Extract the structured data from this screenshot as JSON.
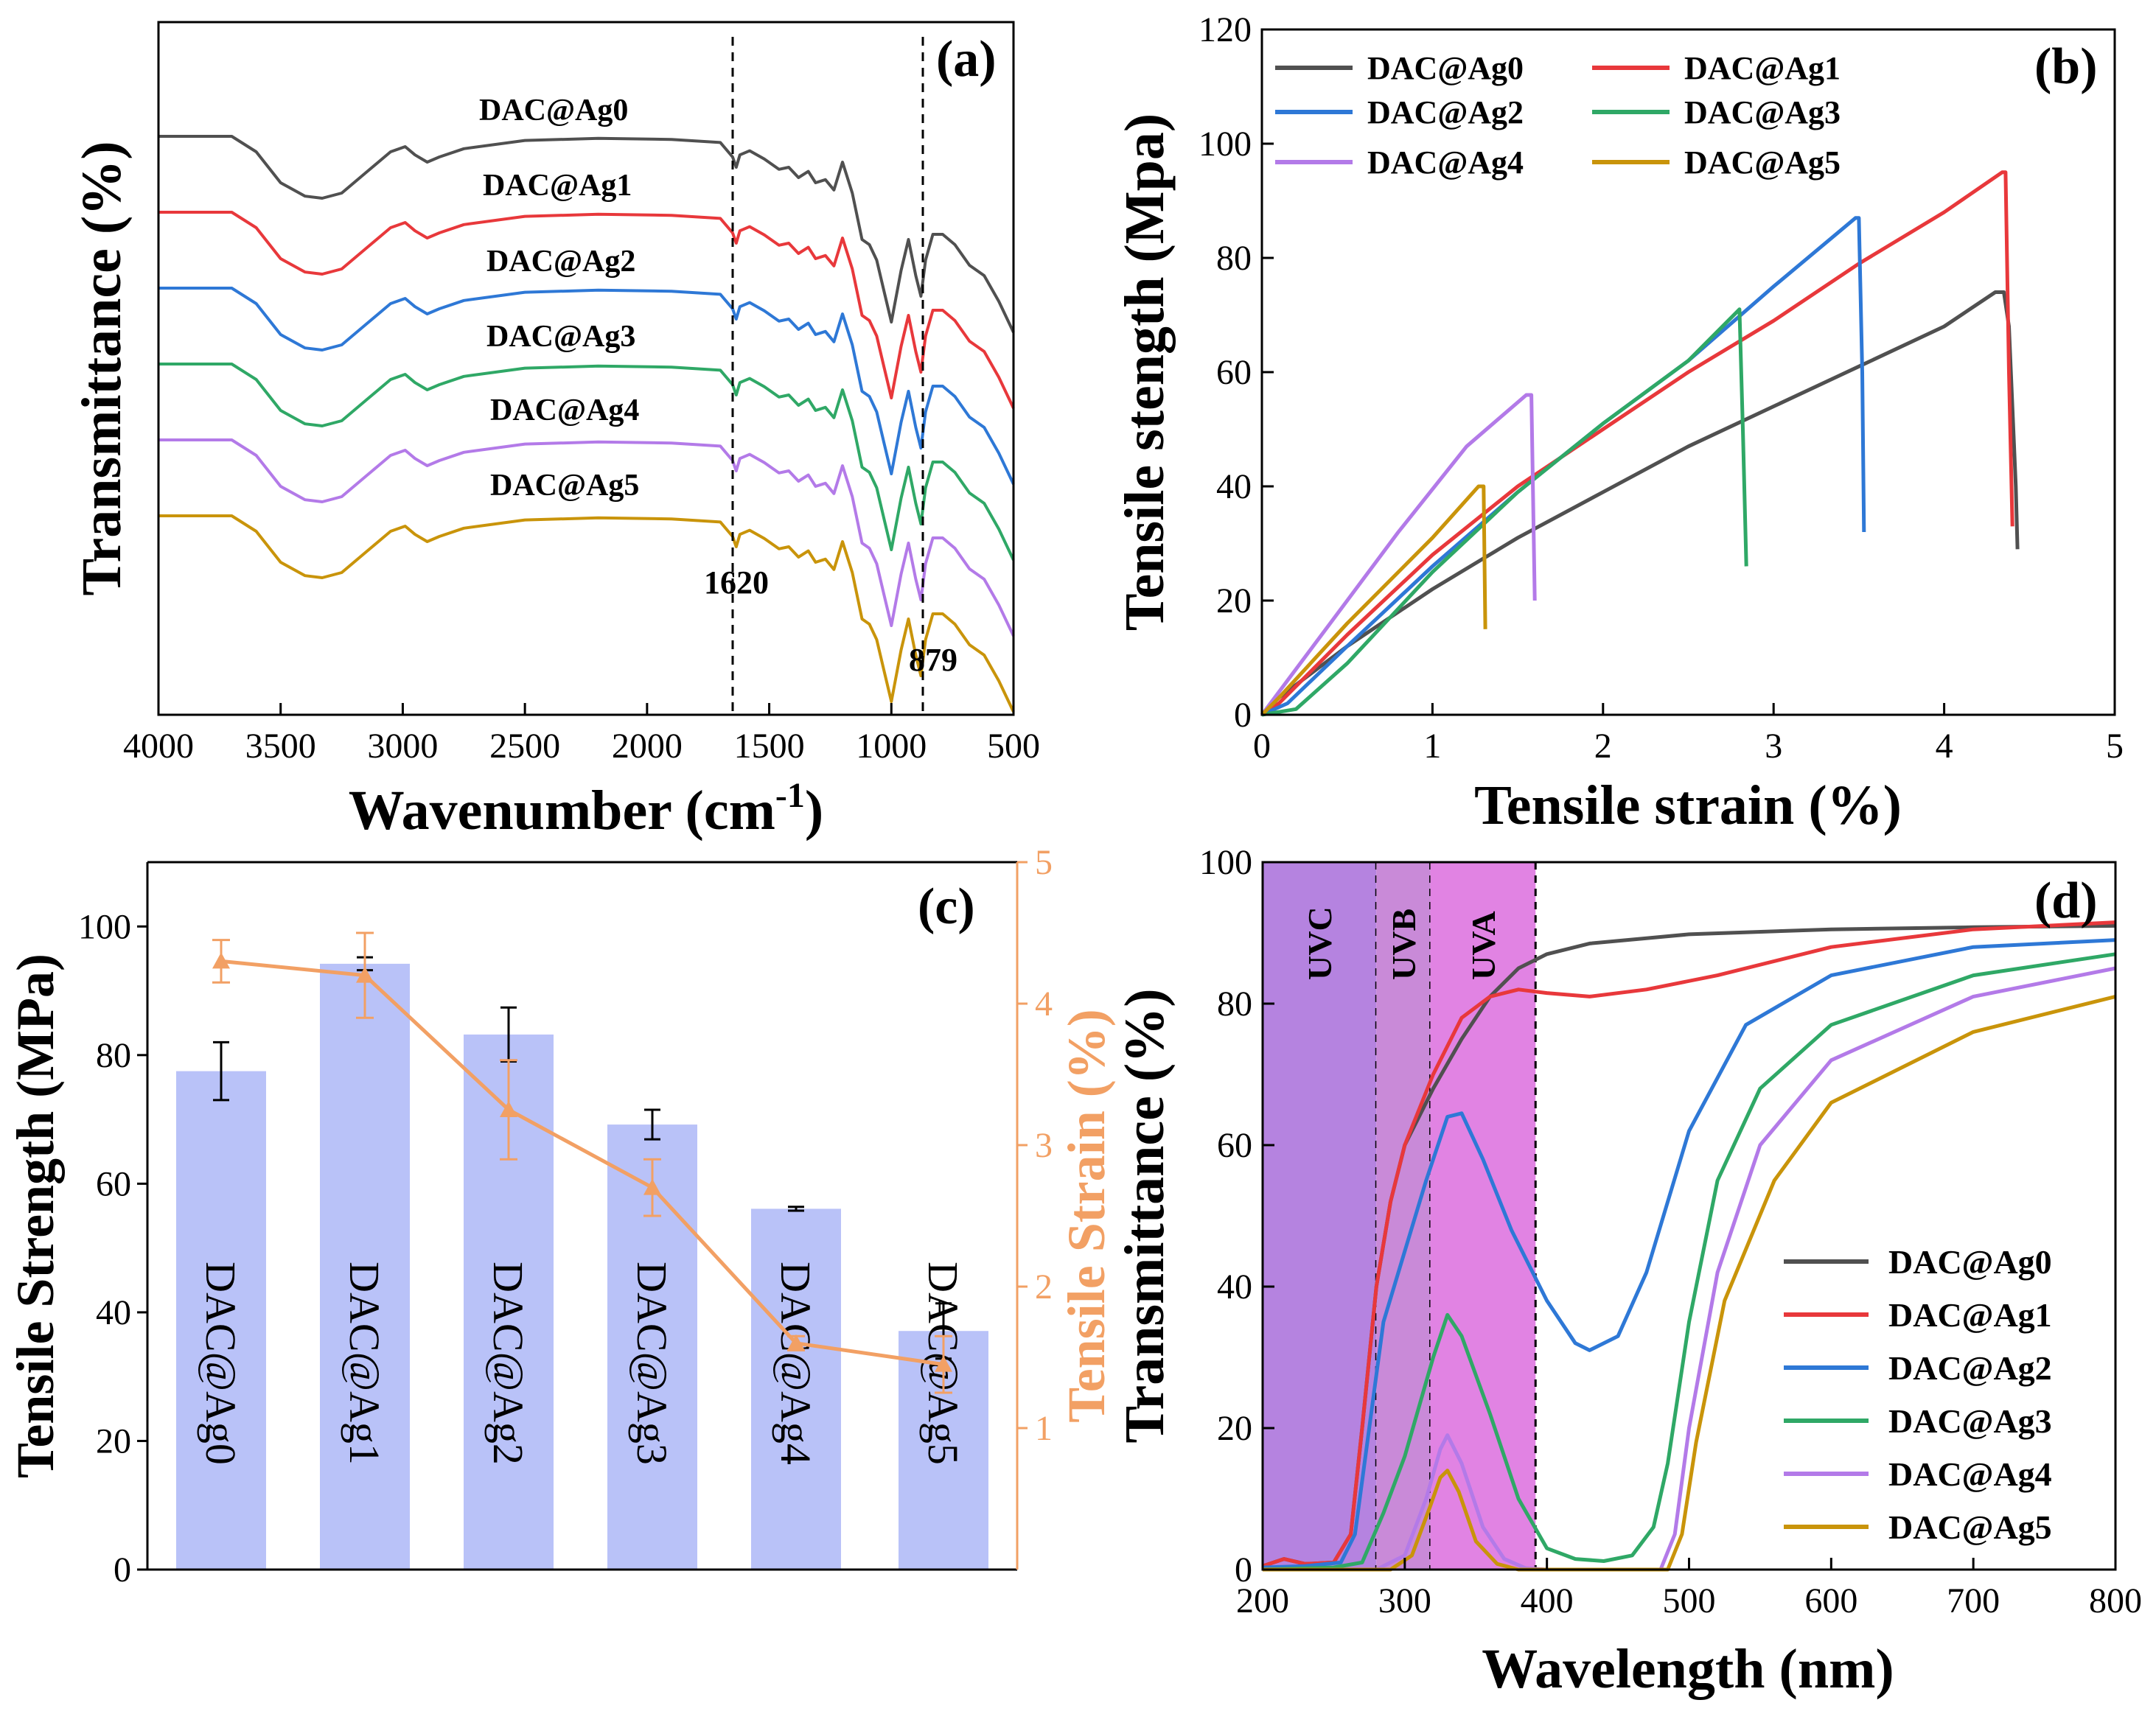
{
  "colors": {
    "Ag0": "#505050",
    "Ag1": "#e8383b",
    "Ag2": "#2e78d6",
    "Ag3": "#2fa866",
    "Ag4": "#b37ae8",
    "Ag5": "#c9940a",
    "bar": "#b9c2f8",
    "strain": "#f2a064",
    "uvc": "#b583e0",
    "uvb": "#c98ad8",
    "uva": "#e183e3"
  },
  "chart_data": [
    {
      "panel": "(a)",
      "type": "line",
      "xlabel": "Wavenumber (cm",
      "xlabel_sup": "-1",
      "xlabel_close": ")",
      "ylabel": "Transmittance (%)",
      "xlim": [
        4000,
        500
      ],
      "xticks": [
        "4000",
        "3500",
        "3000",
        "2500",
        "2000",
        "1500",
        "1000",
        "500"
      ],
      "xtick_values": [
        4000,
        3500,
        3000,
        2500,
        2000,
        1500,
        1000,
        500
      ],
      "series_labels": [
        "DAC@Ag0",
        "DAC@Ag1",
        "DAC@Ag2",
        "DAC@Ag3",
        "DAC@Ag4",
        "DAC@Ag5"
      ],
      "offsets": [
        0,
        1,
        2,
        3,
        4,
        5
      ],
      "template_x": [
        4000,
        3700,
        3600,
        3500,
        3400,
        3330,
        3250,
        3150,
        3050,
        2990,
        2950,
        2900,
        2850,
        2750,
        2500,
        2200,
        1900,
        1700,
        1650,
        1635,
        1620,
        1580,
        1520,
        1460,
        1420,
        1380,
        1340,
        1310,
        1270,
        1235,
        1200,
        1160,
        1120,
        1090,
        1060,
        1030,
        1000,
        960,
        930,
        900,
        879,
        860,
        830,
        790,
        740,
        680,
        620,
        560,
        500
      ],
      "template_t": [
        0,
        0,
        -0.15,
        -0.45,
        -0.58,
        -0.6,
        -0.55,
        -0.35,
        -0.15,
        -0.1,
        -0.18,
        -0.25,
        -0.2,
        -0.12,
        -0.04,
        -0.02,
        -0.03,
        -0.06,
        -0.2,
        -0.3,
        -0.18,
        -0.14,
        -0.22,
        -0.32,
        -0.3,
        -0.4,
        -0.34,
        -0.45,
        -0.42,
        -0.52,
        -0.25,
        -0.55,
        -1.0,
        -1.05,
        -1.2,
        -1.5,
        -1.8,
        -1.3,
        -1.0,
        -1.35,
        -1.55,
        -1.2,
        -0.95,
        -0.95,
        -1.05,
        -1.25,
        -1.35,
        -1.6,
        -1.9
      ],
      "annotations": [
        "1620",
        "879"
      ],
      "annotation_x": [
        1620,
        879
      ]
    },
    {
      "panel": "(b)",
      "type": "line",
      "xlabel": "Tensile strain (%)",
      "ylabel": "Tensile stength (Mpa)",
      "xlim": [
        0,
        5
      ],
      "ylim": [
        0,
        120
      ],
      "xticks": [
        "0",
        "1",
        "2",
        "3",
        "4",
        "5"
      ],
      "xtick_values": [
        0,
        1,
        2,
        3,
        4,
        5
      ],
      "yticks": [
        "0",
        "20",
        "40",
        "60",
        "80",
        "100",
        "120"
      ],
      "ytick_values": [
        0,
        20,
        40,
        60,
        80,
        100,
        120
      ],
      "legend": [
        "DAC@Ag0",
        "DAC@Ag1",
        "DAC@Ag2",
        "DAC@Ag3",
        "DAC@Ag4",
        "DAC@Ag5"
      ],
      "series": [
        {
          "name": "DAC@Ag0",
          "x": [
            0,
            0.1,
            0.5,
            1.0,
            1.5,
            2.0,
            2.5,
            3.0,
            3.5,
            4.0,
            4.3,
            4.35,
            4.38,
            4.42,
            4.43
          ],
          "y": [
            0,
            3,
            12,
            22,
            31,
            39,
            47,
            54,
            61,
            68,
            74,
            74,
            68,
            40,
            29
          ]
        },
        {
          "name": "DAC@Ag1",
          "x": [
            0,
            0.1,
            0.5,
            1.0,
            1.5,
            2.0,
            2.5,
            3.0,
            3.5,
            4.0,
            4.34,
            4.36,
            4.38,
            4.4
          ],
          "y": [
            0,
            2,
            14,
            28,
            40,
            50,
            60,
            69,
            79,
            88,
            95,
            95,
            60,
            33
          ]
        },
        {
          "name": "DAC@Ag2",
          "x": [
            0,
            0.15,
            0.5,
            1.0,
            1.5,
            2.0,
            2.5,
            3.0,
            3.48,
            3.5,
            3.52,
            3.53
          ],
          "y": [
            0,
            2,
            12,
            26,
            39,
            51,
            62,
            75,
            87,
            87,
            60,
            32
          ]
        },
        {
          "name": "DAC@Ag3",
          "x": [
            0,
            0.2,
            0.5,
            1.0,
            1.5,
            2.0,
            2.5,
            2.8,
            2.82,
            2.84
          ],
          "y": [
            0,
            1,
            9,
            25,
            39,
            51,
            62,
            71,
            50,
            26
          ]
        },
        {
          "name": "DAC@Ag4",
          "x": [
            0,
            0.1,
            0.4,
            0.8,
            1.2,
            1.55,
            1.58,
            1.6
          ],
          "y": [
            0,
            4,
            16,
            32,
            47,
            56,
            56,
            20
          ]
        },
        {
          "name": "DAC@Ag5",
          "x": [
            0,
            0.1,
            0.5,
            1.0,
            1.27,
            1.3,
            1.31
          ],
          "y": [
            0,
            3,
            16,
            31,
            40,
            40,
            15
          ]
        }
      ]
    },
    {
      "panel": "(c)",
      "type": "bar",
      "ylabel": "Tensile Strength (MPa)",
      "y2label": "Tensile Strain (%)",
      "ylim": [
        0,
        110
      ],
      "y2lim": [
        0,
        5
      ],
      "yticks": [
        "0",
        "20",
        "40",
        "60",
        "80",
        "100"
      ],
      "ytick_values": [
        0,
        20,
        40,
        60,
        80,
        100
      ],
      "y2ticks": [
        "1",
        "2",
        "3",
        "4",
        "5"
      ],
      "y2tick_values": [
        1,
        2,
        3,
        4,
        5
      ],
      "categories": [
        "DAC@Ag0",
        "DAC@Ag1",
        "DAC@Ag2",
        "DAC@Ag3",
        "DAC@Ag4",
        "DAC@Ag5"
      ],
      "strength": [
        77.5,
        94.2,
        83.2,
        69.2,
        56.1,
        37.1
      ],
      "strength_err": [
        4.5,
        1.0,
        4.2,
        2.3,
        0.3,
        4.3
      ],
      "strain": [
        4.3,
        4.2,
        3.25,
        2.7,
        1.6,
        1.45
      ],
      "strain_err": [
        0.15,
        0.3,
        0.35,
        0.2,
        0.05,
        0.2
      ]
    },
    {
      "panel": "(d)",
      "type": "line",
      "xlabel": "Wavelength (nm)",
      "ylabel": "Transmittance (%)",
      "xlim": [
        200,
        800
      ],
      "ylim": [
        0,
        100
      ],
      "xticks": [
        "200",
        "300",
        "400",
        "500",
        "600",
        "700",
        "800"
      ],
      "xtick_values": [
        200,
        300,
        400,
        500,
        600,
        700,
        800
      ],
      "yticks": [
        "0",
        "20",
        "40",
        "60",
        "80",
        "100"
      ],
      "ytick_values": [
        0,
        20,
        40,
        60,
        80,
        100
      ],
      "regions": [
        {
          "label": "UVC",
          "x0": 200,
          "x1": 280
        },
        {
          "label": "UVB",
          "x0": 280,
          "x1": 318
        },
        {
          "label": "UVA",
          "x0": 318,
          "x1": 392
        }
      ],
      "legend": [
        "DAC@Ag0",
        "DAC@Ag1",
        "DAC@Ag2",
        "DAC@Ag3",
        "DAC@Ag4",
        "DAC@Ag5"
      ],
      "series": [
        {
          "name": "DAC@Ag0",
          "x": [
            200,
            215,
            230,
            250,
            262,
            270,
            280,
            290,
            300,
            320,
            340,
            360,
            380,
            400,
            430,
            500,
            600,
            700,
            800
          ],
          "y": [
            0.5,
            1.5,
            0.8,
            1,
            5,
            20,
            40,
            52,
            60,
            68,
            75,
            81,
            85,
            87,
            88.5,
            89.8,
            90.5,
            90.8,
            91
          ]
        },
        {
          "name": "DAC@Ag1",
          "x": [
            200,
            215,
            230,
            250,
            262,
            270,
            280,
            290,
            300,
            320,
            340,
            360,
            380,
            400,
            430,
            470,
            520,
            600,
            700,
            800
          ],
          "y": [
            0.5,
            1.5,
            0.8,
            1,
            5,
            20,
            40,
            52,
            60,
            70,
            78,
            81,
            82,
            81.5,
            81,
            82,
            84,
            88,
            90.5,
            91.5
          ]
        },
        {
          "name": "DAC@Ag2",
          "x": [
            200,
            230,
            255,
            265,
            275,
            285,
            300,
            315,
            330,
            340,
            355,
            375,
            400,
            420,
            430,
            450,
            470,
            500,
            540,
            600,
            700,
            800
          ],
          "y": [
            0.3,
            0.5,
            1,
            5,
            20,
            35,
            45,
            55,
            64,
            64.5,
            58,
            48,
            38,
            32,
            31,
            33,
            42,
            62,
            77,
            84,
            88,
            89
          ]
        },
        {
          "name": "DAC@Ag3",
          "x": [
            200,
            250,
            270,
            285,
            300,
            320,
            330,
            340,
            360,
            380,
            400,
            420,
            440,
            460,
            475,
            485,
            500,
            520,
            550,
            600,
            700,
            800
          ],
          "y": [
            0,
            0.3,
            1,
            8,
            16,
            30,
            36,
            33,
            22,
            10,
            3,
            1.5,
            1.2,
            2,
            6,
            15,
            35,
            55,
            68,
            77,
            84,
            87
          ]
        },
        {
          "name": "DAC@Ag4",
          "x": [
            200,
            280,
            300,
            315,
            325,
            330,
            340,
            355,
            370,
            385,
            400,
            480,
            490,
            500,
            520,
            550,
            600,
            700,
            800
          ],
          "y": [
            0,
            0,
            2,
            10,
            17,
            19,
            15,
            6,
            1.5,
            0.2,
            0,
            0,
            5,
            20,
            42,
            60,
            72,
            81,
            85
          ]
        },
        {
          "name": "DAC@Ag5",
          "x": [
            200,
            290,
            305,
            318,
            325,
            330,
            338,
            350,
            365,
            380,
            400,
            485,
            495,
            505,
            525,
            560,
            600,
            700,
            800
          ],
          "y": [
            0,
            0,
            2,
            9,
            13,
            14,
            11,
            4,
            0.8,
            0,
            0,
            0,
            5,
            18,
            38,
            55,
            66,
            76,
            81
          ]
        }
      ]
    }
  ]
}
